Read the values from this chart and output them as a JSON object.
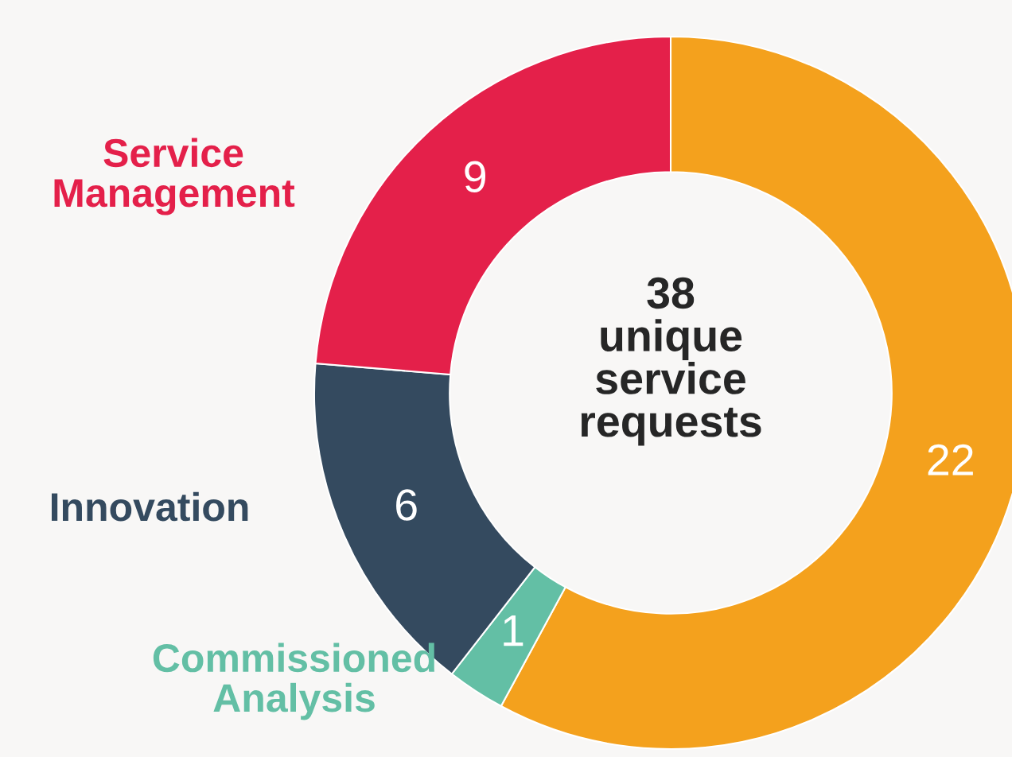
{
  "chart_data": {
    "type": "donut",
    "categories": [
      null,
      "Commissioned\nAnalysis",
      "Innovation",
      "Service\nManagement"
    ],
    "values": [
      22,
      1,
      6,
      9
    ],
    "colors": [
      "#f4a11d",
      "#63bfa5",
      "#344a5f",
      "#e4204a"
    ],
    "data_labels": true,
    "annotations": [
      "38\nunique\nservice\nrequests"
    ],
    "legend": false
  }
}
